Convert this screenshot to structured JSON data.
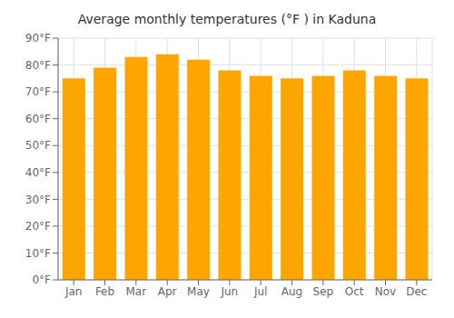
{
  "chart_data": {
    "type": "bar",
    "title": "Average monthly temperatures (°F ) in Kaduna",
    "categories": [
      "Jan",
      "Feb",
      "Mar",
      "Apr",
      "May",
      "Jun",
      "Jul",
      "Aug",
      "Sep",
      "Oct",
      "Nov",
      "Dec"
    ],
    "values": [
      75,
      79,
      83,
      84,
      82,
      78,
      76,
      75,
      76,
      78,
      76,
      75
    ],
    "color": "#FFA500",
    "ylim": [
      0,
      90
    ],
    "yticks": [
      {
        "value": 0,
        "label": "0°F"
      },
      {
        "value": 10,
        "label": "10°F"
      },
      {
        "value": 20,
        "label": "20°F"
      },
      {
        "value": 30,
        "label": "30°F"
      },
      {
        "value": 40,
        "label": "40°F"
      },
      {
        "value": 50,
        "label": "50°F"
      },
      {
        "value": 60,
        "label": "60°F"
      },
      {
        "value": 70,
        "label": "70°F"
      },
      {
        "value": 80,
        "label": "80°F"
      },
      {
        "value": 90,
        "label": "90°F"
      }
    ],
    "grid": true
  }
}
